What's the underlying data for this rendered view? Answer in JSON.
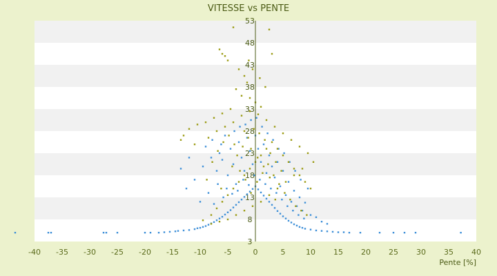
{
  "chart_data": {
    "type": "scatter",
    "title": "VITESSE vs PENTE",
    "xlabel": "Pente [%]",
    "ylabel": "",
    "xlim": [
      -40,
      40
    ],
    "ylim": [
      3,
      53
    ],
    "x_ticks": [
      "-40",
      "-35",
      "-30",
      "-25",
      "-20",
      "-15",
      "-10",
      "-5",
      "0",
      "5",
      "10",
      "15",
      "20",
      "25",
      "30",
      "35",
      "40"
    ],
    "y_ticks": [
      "3",
      "8",
      "13",
      "18",
      "23",
      "28",
      "33",
      "38",
      "43",
      "48",
      "53"
    ],
    "grid": "horizontal alternating bands",
    "colors": {
      "background": "#ecf2cd",
      "plot_band_light": "#ffffff",
      "plot_band_dark": "#f1f1f1",
      "series_blue": "#3d8fd8",
      "series_olive": "#9a9a10",
      "axis": "#4a5a14"
    },
    "series": [
      {
        "color": "#3d8fd8",
        "points": [
          [
            -43.5,
            5
          ],
          [
            -37.5,
            5
          ],
          [
            -37,
            5
          ],
          [
            -27.5,
            5
          ],
          [
            -27,
            5
          ],
          [
            -25,
            5
          ],
          [
            -20,
            5
          ],
          [
            -19,
            5
          ],
          [
            -17.5,
            5
          ],
          [
            -16.5,
            5.1
          ],
          [
            -15.5,
            5.2
          ],
          [
            -14.5,
            5.3
          ],
          [
            -14,
            5.4
          ],
          [
            -13,
            5.5
          ],
          [
            -12,
            5.6
          ],
          [
            -11,
            5.8
          ],
          [
            -10.5,
            6
          ],
          [
            -10,
            6.1
          ],
          [
            -9.5,
            6.3
          ],
          [
            -9,
            6.5
          ],
          [
            -8.5,
            6.8
          ],
          [
            -8,
            7.1
          ],
          [
            -7.5,
            7.4
          ],
          [
            -7,
            7.8
          ],
          [
            -6.5,
            8.2
          ],
          [
            -6,
            8.6
          ],
          [
            -5.5,
            9.1
          ],
          [
            -5,
            9.6
          ],
          [
            -4.5,
            10.1
          ],
          [
            -4,
            10.7
          ],
          [
            -3.5,
            11.3
          ],
          [
            -3,
            11.9
          ],
          [
            -2.5,
            12.5
          ],
          [
            -2,
            13.1
          ],
          [
            -1.5,
            13.7
          ],
          [
            -1,
            14.3
          ],
          [
            -0.5,
            14.9
          ],
          [
            0,
            15.5
          ],
          [
            0.5,
            14.8
          ],
          [
            1,
            14.1
          ],
          [
            1.5,
            13.4
          ],
          [
            2,
            12.7
          ],
          [
            2.5,
            12
          ],
          [
            3,
            11.3
          ],
          [
            3.5,
            10.6
          ],
          [
            4,
            9.9
          ],
          [
            4.5,
            9.3
          ],
          [
            5,
            8.7
          ],
          [
            5.5,
            8.2
          ],
          [
            6,
            7.7
          ],
          [
            6.5,
            7.3
          ],
          [
            7,
            6.9
          ],
          [
            7.5,
            6.6
          ],
          [
            8,
            6.3
          ],
          [
            8.5,
            6.1
          ],
          [
            9,
            5.9
          ],
          [
            10,
            5.7
          ],
          [
            11,
            5.5
          ],
          [
            12,
            5.4
          ],
          [
            13,
            5.3
          ],
          [
            14,
            5.2
          ],
          [
            15,
            5.1
          ],
          [
            16,
            5.1
          ],
          [
            17,
            5
          ],
          [
            19,
            5
          ],
          [
            22.5,
            5
          ],
          [
            25,
            5
          ],
          [
            27,
            5
          ],
          [
            29,
            5
          ],
          [
            37.2,
            5
          ],
          [
            -12.5,
            15
          ],
          [
            -11,
            17
          ],
          [
            -9.5,
            20
          ],
          [
            -8,
            22
          ],
          [
            -7,
            19
          ],
          [
            -6.5,
            23
          ],
          [
            -6,
            21.5
          ],
          [
            -5,
            18
          ],
          [
            -4.5,
            24
          ],
          [
            -4,
            20.5
          ],
          [
            -3.5,
            16
          ],
          [
            -3,
            25.5
          ],
          [
            -2.5,
            22
          ],
          [
            -2,
            19
          ],
          [
            -1.5,
            26.5
          ],
          [
            -1,
            23.5
          ],
          [
            -0.5,
            20.5
          ],
          [
            0,
            27
          ],
          [
            0.5,
            24
          ],
          [
            1,
            21
          ],
          [
            1.5,
            25
          ],
          [
            2,
            18.5
          ],
          [
            2.5,
            22.5
          ],
          [
            3,
            20
          ],
          [
            3.5,
            17.5
          ],
          [
            4,
            21
          ],
          [
            4.5,
            15.5
          ],
          [
            5,
            19
          ],
          [
            5.5,
            13.5
          ],
          [
            6,
            16.5
          ],
          [
            6.5,
            12
          ],
          [
            7,
            14.5
          ],
          [
            7.5,
            11
          ],
          [
            8,
            13
          ],
          [
            8.5,
            10
          ],
          [
            9,
            11.8
          ],
          [
            10,
            9
          ],
          [
            11,
            8.5
          ],
          [
            12,
            7.5
          ],
          [
            13,
            7
          ],
          [
            -10,
            12
          ],
          [
            -8.5,
            14
          ],
          [
            -7.5,
            11.5
          ],
          [
            -6.8,
            16
          ],
          [
            -5.8,
            13
          ],
          [
            -5.2,
            15
          ],
          [
            -4.2,
            13.8
          ],
          [
            -3.2,
            14.5
          ],
          [
            -2.2,
            17
          ],
          [
            -1.2,
            15.8
          ],
          [
            -0.2,
            18
          ],
          [
            0.8,
            17
          ],
          [
            1.8,
            16
          ],
          [
            2.8,
            15
          ],
          [
            3.8,
            14
          ],
          [
            4.8,
            12.5
          ],
          [
            5.8,
            11
          ],
          [
            6.8,
            10
          ],
          [
            7.8,
            9
          ],
          [
            8.8,
            8.2
          ],
          [
            -13.5,
            19.5
          ],
          [
            -12,
            22
          ],
          [
            -9,
            24.5
          ],
          [
            -7.8,
            26
          ],
          [
            -6.2,
            25
          ],
          [
            -5.5,
            27
          ],
          [
            -3.8,
            28
          ],
          [
            -2.8,
            29
          ],
          [
            -1.8,
            29.5
          ],
          [
            -0.8,
            30.5
          ],
          [
            0.2,
            31
          ],
          [
            1.2,
            29
          ],
          [
            2.2,
            27.5
          ],
          [
            3.2,
            26
          ],
          [
            4.2,
            24
          ],
          [
            5.2,
            23
          ],
          [
            6.2,
            21
          ],
          [
            7.2,
            19
          ],
          [
            8.2,
            17
          ],
          [
            9.5,
            15
          ]
        ]
      },
      {
        "color": "#9a9a10",
        "points": [
          [
            -4,
            51.5
          ],
          [
            2.5,
            51
          ],
          [
            -6.5,
            46.5
          ],
          [
            -6,
            45.5
          ],
          [
            -5.5,
            45
          ],
          [
            -5,
            44
          ],
          [
            3,
            45.5
          ],
          [
            -3,
            42
          ],
          [
            -2,
            40.5
          ],
          [
            -1.5,
            39
          ],
          [
            -3.5,
            37.5
          ],
          [
            -2.5,
            36
          ],
          [
            -1,
            35.5
          ],
          [
            0,
            34.5
          ],
          [
            1,
            33.5
          ],
          [
            -4.5,
            33
          ],
          [
            -6,
            32
          ],
          [
            -7.5,
            31
          ],
          [
            -9,
            30
          ],
          [
            -10.5,
            29.5
          ],
          [
            -12,
            28.5
          ],
          [
            -13,
            27
          ],
          [
            -13.5,
            26
          ],
          [
            -11,
            25
          ],
          [
            -8.5,
            26.5
          ],
          [
            -7,
            28
          ],
          [
            -5.5,
            29
          ],
          [
            -4,
            30
          ],
          [
            -2.5,
            31.5
          ],
          [
            -1,
            32.5
          ],
          [
            0.5,
            31.8
          ],
          [
            2,
            30.5
          ],
          [
            3.5,
            29
          ],
          [
            5,
            27.5
          ],
          [
            6.5,
            26
          ],
          [
            8,
            24.5
          ],
          [
            9.5,
            23
          ],
          [
            10.5,
            21
          ],
          [
            8.5,
            19.5
          ],
          [
            7,
            18
          ],
          [
            5.5,
            16.5
          ],
          [
            4,
            15
          ],
          [
            2.5,
            13.5
          ],
          [
            1,
            12
          ],
          [
            -0.5,
            11
          ],
          [
            -2,
            10
          ],
          [
            -3.5,
            9
          ],
          [
            -5,
            8
          ],
          [
            -6.5,
            7.5
          ],
          [
            -8,
            7
          ],
          [
            -9.5,
            7.8
          ],
          [
            -8,
            9
          ],
          [
            -7,
            10.5
          ],
          [
            -6,
            12
          ],
          [
            -5,
            13.5
          ],
          [
            -4,
            15
          ],
          [
            -3,
            16.5
          ],
          [
            -2,
            18
          ],
          [
            -1,
            19.5
          ],
          [
            0,
            21
          ],
          [
            1,
            22.5
          ],
          [
            2,
            24
          ],
          [
            3,
            25.5
          ],
          [
            4,
            24
          ],
          [
            5,
            22.5
          ],
          [
            6,
            21
          ],
          [
            7,
            19.5
          ],
          [
            8,
            18
          ],
          [
            9,
            16.5
          ],
          [
            10,
            15
          ],
          [
            -4.2,
            20
          ],
          [
            -3.3,
            22.5
          ],
          [
            -2.3,
            24.5
          ],
          [
            -1.3,
            26.5
          ],
          [
            -0.3,
            28.5
          ],
          [
            0.7,
            27.5
          ],
          [
            1.7,
            26
          ],
          [
            2.7,
            23
          ],
          [
            3.7,
            21
          ],
          [
            4.7,
            19
          ],
          [
            -8.8,
            17
          ],
          [
            -7.8,
            21
          ],
          [
            -6.8,
            23.5
          ],
          [
            -5.8,
            25.5
          ],
          [
            -4.8,
            27
          ],
          [
            -3.8,
            25
          ],
          [
            -2.8,
            19
          ],
          [
            -1.8,
            17
          ],
          [
            -0.8,
            14
          ],
          [
            0.3,
            16.5
          ],
          [
            1.3,
            18.5
          ],
          [
            2.3,
            20.5
          ],
          [
            3.3,
            18
          ],
          [
            4.3,
            16
          ],
          [
            5.3,
            14
          ],
          [
            6.3,
            12.5
          ],
          [
            7.3,
            11
          ],
          [
            8.3,
            10
          ],
          [
            9.3,
            9
          ],
          [
            -1.2,
            44
          ],
          [
            -0.5,
            42
          ],
          [
            0.8,
            40
          ],
          [
            1.8,
            38
          ],
          [
            -2,
            28
          ],
          [
            -0.8,
            24
          ],
          [
            0.4,
            22
          ],
          [
            1.5,
            20
          ],
          [
            2.6,
            17.5
          ],
          [
            3.6,
            12.5
          ],
          [
            -6.2,
            15
          ]
        ]
      }
    ]
  }
}
